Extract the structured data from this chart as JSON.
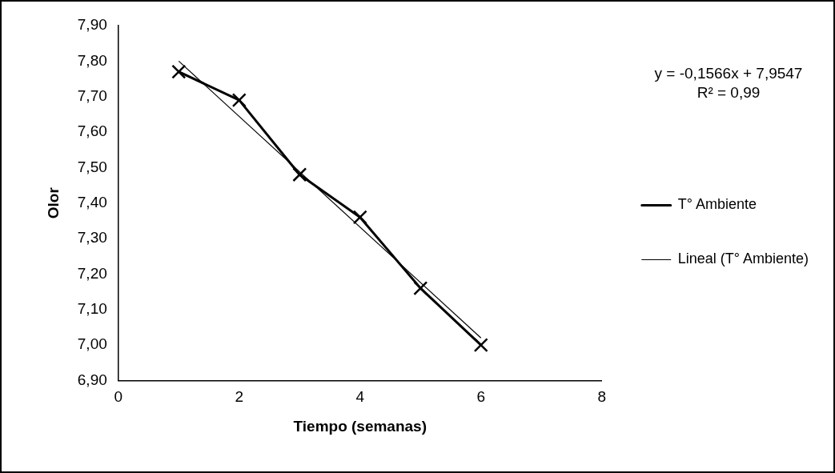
{
  "chart_data": {
    "type": "line",
    "xlabel": "Tiempo (semanas)",
    "ylabel": "Olor",
    "x": [
      1,
      2,
      3,
      4,
      5,
      6
    ],
    "series": [
      {
        "name": "T° Ambiente",
        "color": "#000000",
        "values": [
          7.77,
          7.69,
          7.48,
          7.36,
          7.16,
          7.0
        ],
        "marker": "cross"
      },
      {
        "name": "Lineal (T° Ambiente)",
        "color": "#000000",
        "x": [
          1,
          6
        ],
        "values": [
          7.8,
          7.02
        ],
        "marker": "none"
      }
    ],
    "xlim": [
      0,
      8
    ],
    "xticks": [
      0,
      2,
      4,
      6,
      8
    ],
    "ylim": [
      6.9,
      7.9
    ],
    "yticks": [
      {
        "value": 6.9,
        "label": "6,90"
      },
      {
        "value": 7.0,
        "label": "7,00"
      },
      {
        "value": 7.1,
        "label": "7,10"
      },
      {
        "value": 7.2,
        "label": "7,20"
      },
      {
        "value": 7.3,
        "label": "7,30"
      },
      {
        "value": 7.4,
        "label": "7,40"
      },
      {
        "value": 7.5,
        "label": "7,50"
      },
      {
        "value": 7.6,
        "label": "7,60"
      },
      {
        "value": 7.7,
        "label": "7,70"
      },
      {
        "value": 7.8,
        "label": "7,80"
      },
      {
        "value": 7.9,
        "label": "7,90"
      }
    ],
    "annotations": [
      "y = -0,1566x + 7,9547\nR² = 0,99"
    ],
    "legend": "right",
    "grid": false
  }
}
